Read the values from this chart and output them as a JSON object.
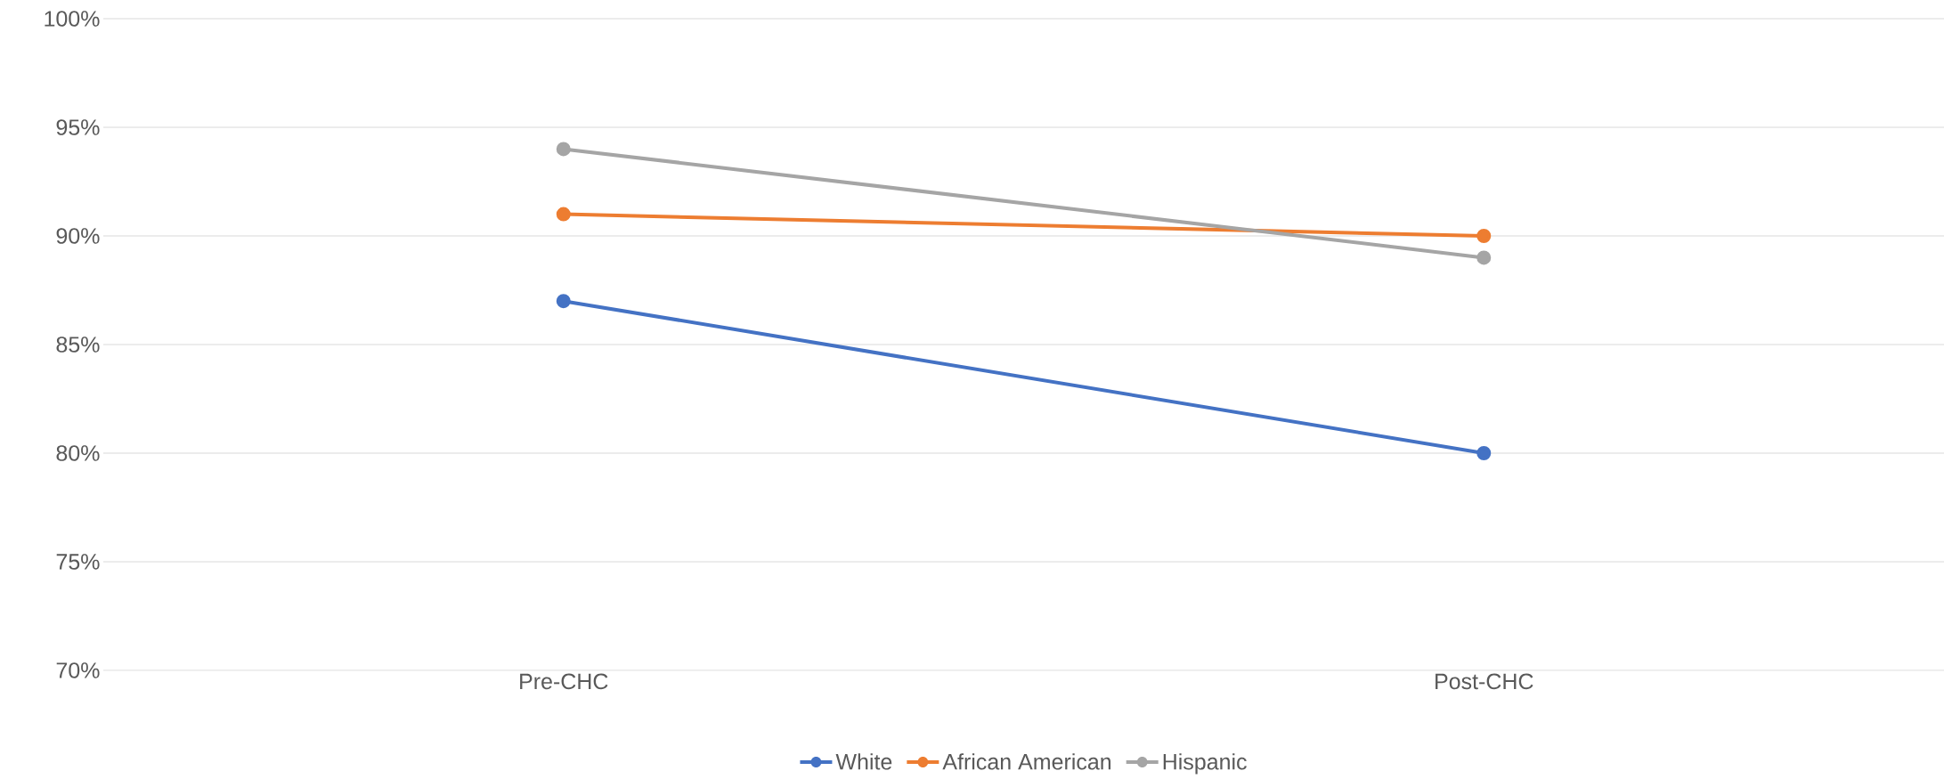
{
  "chart_data": {
    "type": "line",
    "categories": [
      "Pre-CHC",
      "Post-CHC"
    ],
    "series": [
      {
        "name": "White",
        "color": "#4472c4",
        "values": [
          87,
          80
        ]
      },
      {
        "name": "African American",
        "color": "#ed7d31",
        "values": [
          91,
          90
        ]
      },
      {
        "name": "Hispanic",
        "color": "#a5a5a5",
        "values": [
          94,
          89
        ]
      }
    ],
    "ylim": [
      70,
      100
    ],
    "yticks": [
      {
        "value": 70,
        "label": "70%"
      },
      {
        "value": 75,
        "label": "75%"
      },
      {
        "value": 80,
        "label": "80%"
      },
      {
        "value": 85,
        "label": "85%"
      },
      {
        "value": 90,
        "label": "90%"
      },
      {
        "value": 95,
        "label": "95%"
      },
      {
        "value": 100,
        "label": "100%"
      }
    ],
    "grid": "y",
    "legend": "bottom",
    "marker": "circle",
    "line_style": "solid"
  }
}
